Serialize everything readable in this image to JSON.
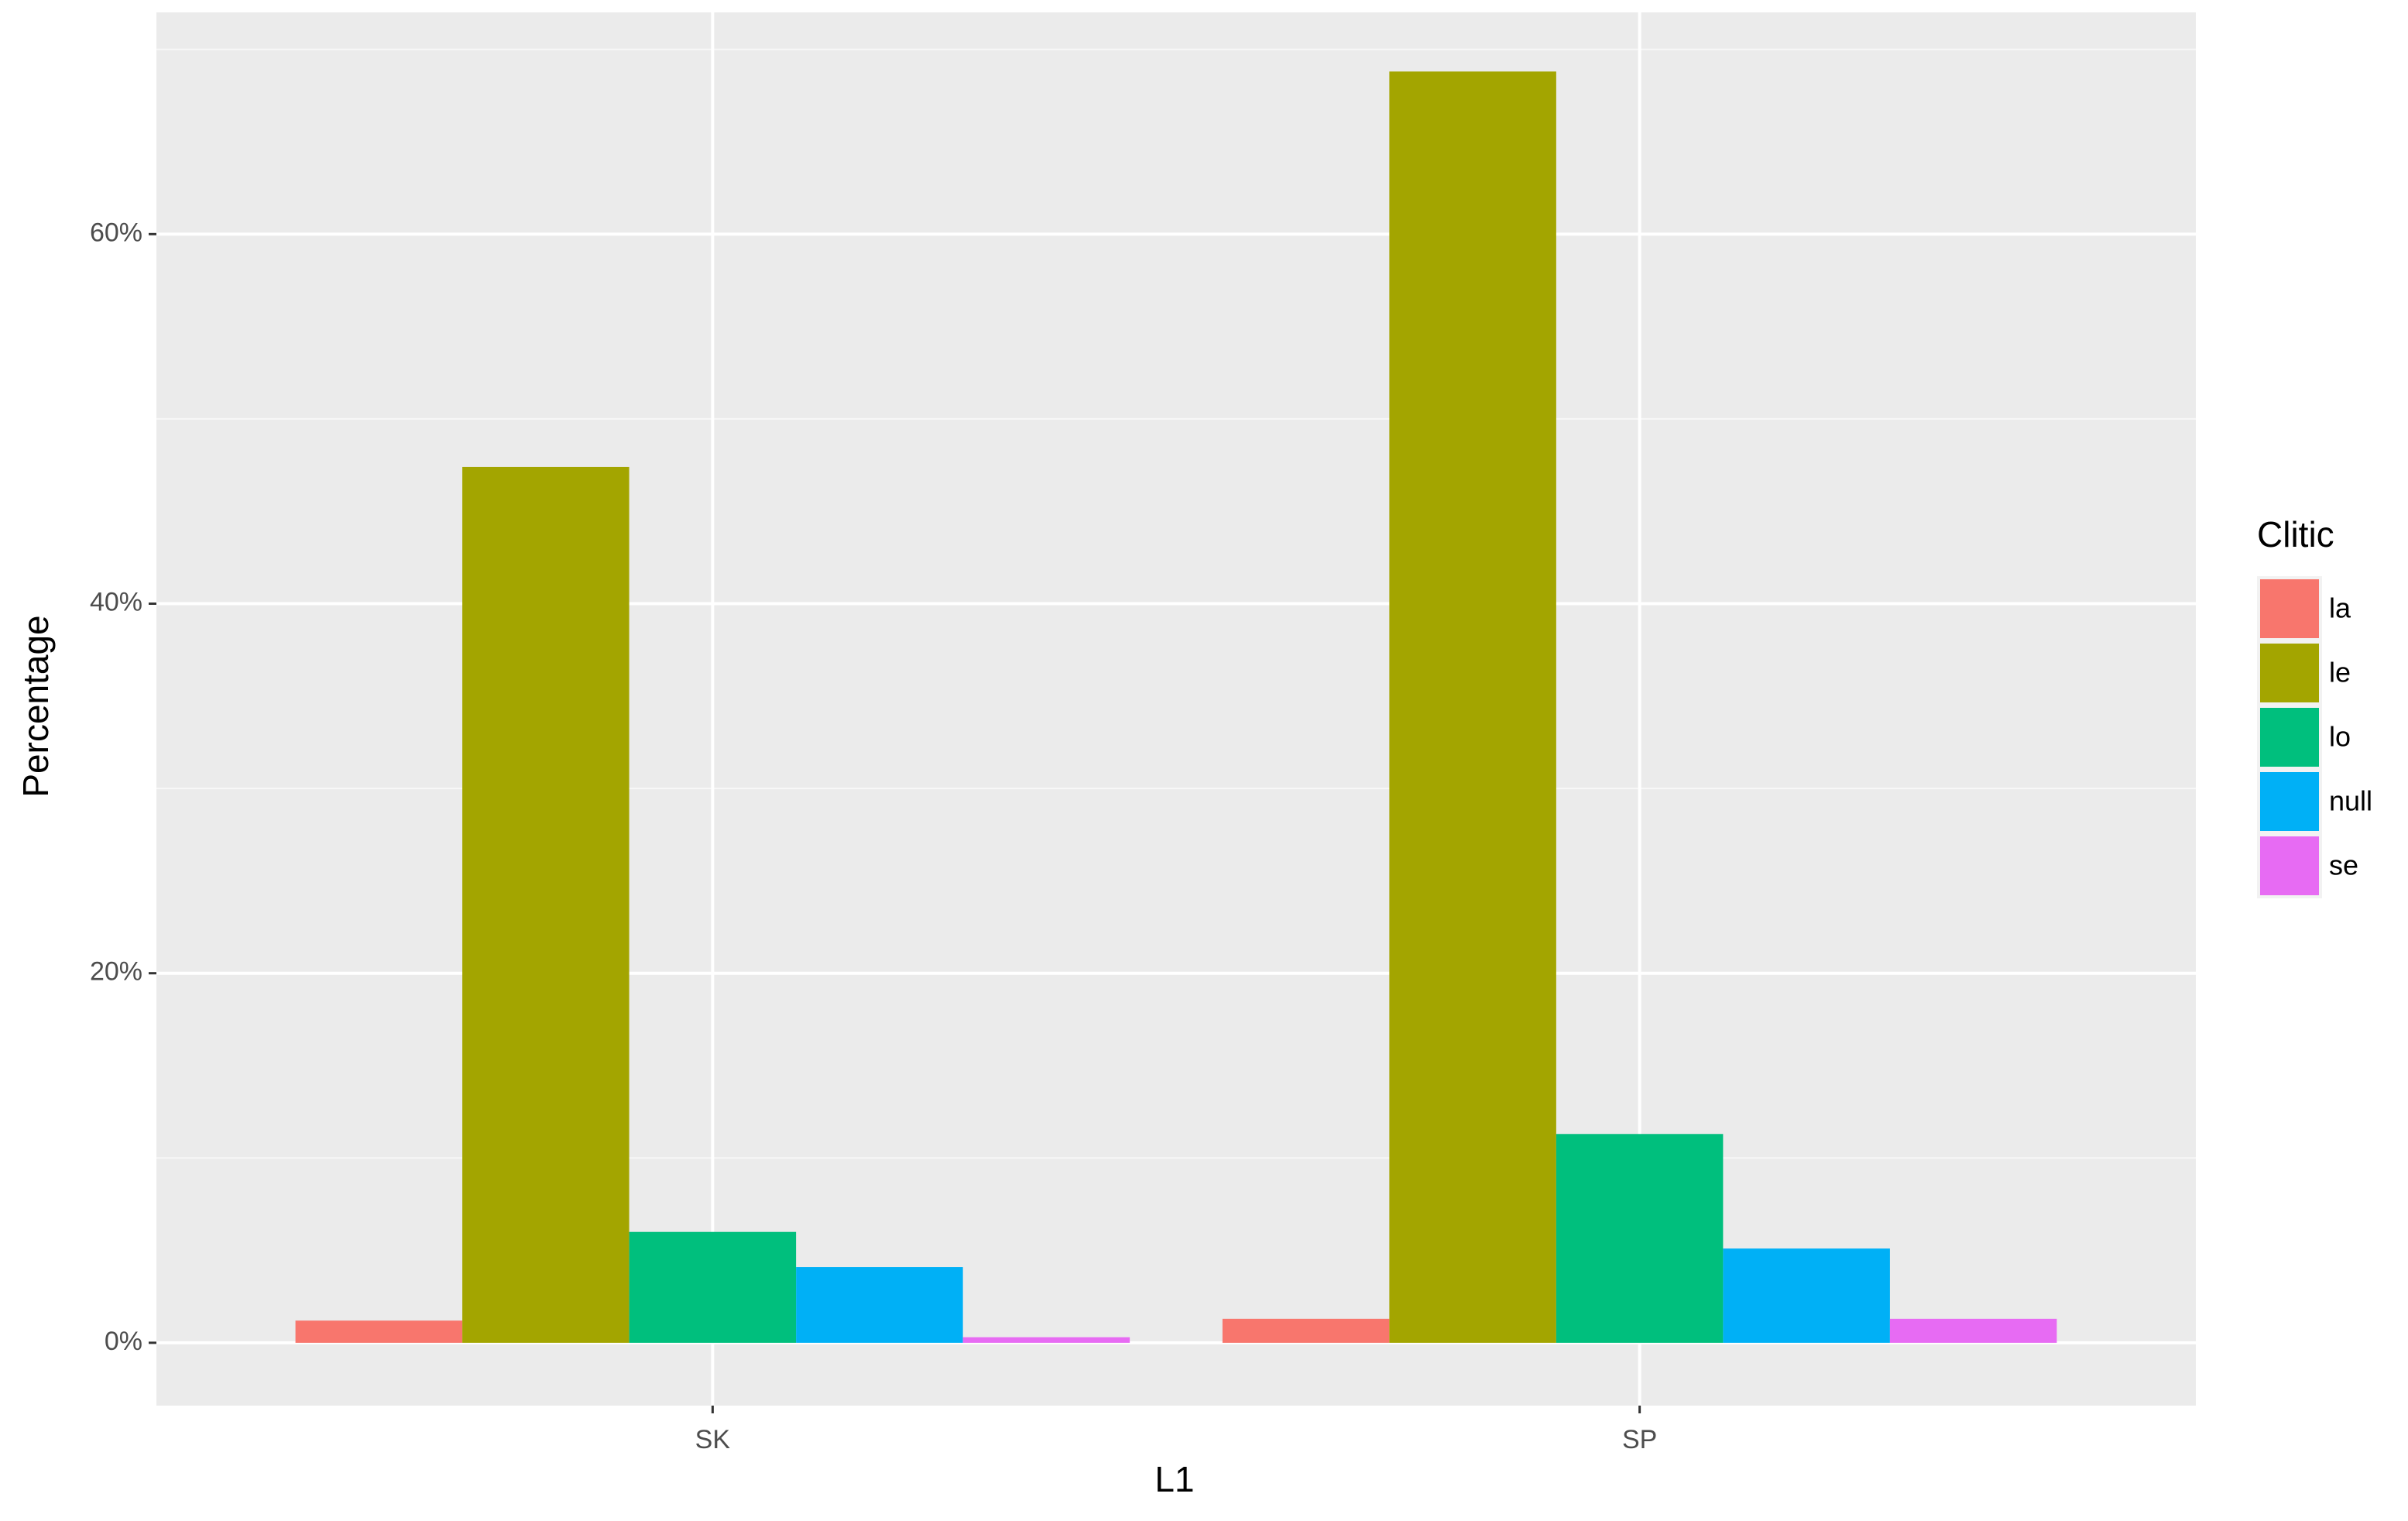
{
  "chart_data": {
    "type": "grouped_bar",
    "x_label": "L1",
    "y_label": "Percentage",
    "categories": [
      "SK",
      "SP"
    ],
    "series": [
      {
        "name": "la",
        "color": "#f8766d",
        "values": [
          1.2,
          1.3
        ]
      },
      {
        "name": "le",
        "color": "#a3a500",
        "values": [
          47.4,
          68.8
        ]
      },
      {
        "name": "lo",
        "color": "#00bf7d",
        "values": [
          6.0,
          11.3
        ]
      },
      {
        "name": "null",
        "color": "#00b0f6",
        "values": [
          4.1,
          5.1
        ]
      },
      {
        "name": "se",
        "color": "#e76bf3",
        "values": [
          0.3,
          1.3
        ]
      }
    ],
    "legend_title": "Clitic",
    "legend": "right",
    "ylim": [
      -3.4,
      72
    ],
    "yticks": [
      {
        "value": 0,
        "label": "0%"
      },
      {
        "value": 20,
        "label": "20%"
      },
      {
        "value": 40,
        "label": "40%"
      },
      {
        "value": 60,
        "label": "60%"
      }
    ],
    "minor_yticks": [
      10,
      30,
      50,
      70
    ],
    "grid": true
  }
}
